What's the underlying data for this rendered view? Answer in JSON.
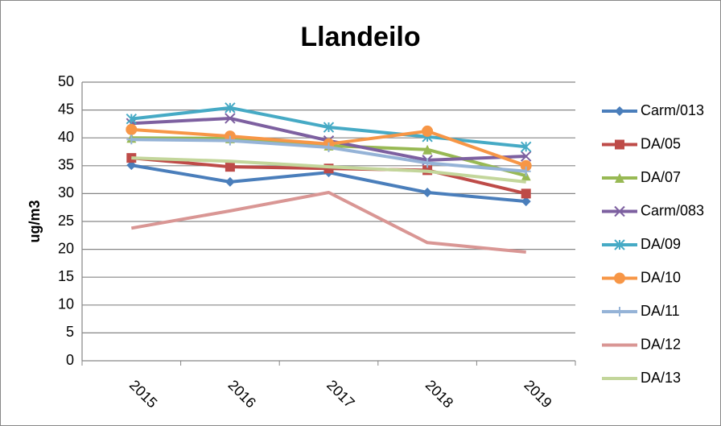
{
  "chart_data": {
    "type": "line",
    "title": "Llandeilo",
    "y_label": "ug/m3",
    "categories": [
      "2015",
      "2016",
      "2017",
      "2018",
      "2019"
    ],
    "ylim": [
      0,
      50
    ],
    "yticks": [
      0,
      5,
      10,
      15,
      20,
      25,
      30,
      35,
      40,
      45,
      50
    ],
    "grid": true,
    "legend": "right",
    "series": [
      {
        "name": "Carm/013",
        "color": "#4a7ebb",
        "marker": "diamond",
        "values": [
          35.1,
          32.1,
          33.8,
          30.2,
          28.6
        ]
      },
      {
        "name": "DA/05",
        "color": "#be4b48",
        "marker": "square",
        "values": [
          36.4,
          34.8,
          34.5,
          34.2,
          30.0
        ]
      },
      {
        "name": "DA/07",
        "color": "#98b954",
        "marker": "triangle",
        "values": [
          40.0,
          39.9,
          38.6,
          37.9,
          33.2
        ]
      },
      {
        "name": "Carm/083",
        "color": "#7d60a0",
        "marker": "x",
        "values": [
          42.6,
          43.5,
          39.5,
          36.0,
          36.7
        ]
      },
      {
        "name": "DA/09",
        "color": "#46aac5",
        "marker": "star",
        "values": [
          43.4,
          45.4,
          41.9,
          40.2,
          38.4
        ]
      },
      {
        "name": "DA/10",
        "color": "#f79646",
        "marker": "circle",
        "values": [
          41.5,
          40.3,
          38.9,
          41.2,
          35.0
        ]
      },
      {
        "name": "DA/11",
        "color": "#95b3d7",
        "marker": "plus",
        "values": [
          39.7,
          39.5,
          38.3,
          35.5,
          34.0
        ]
      },
      {
        "name": "DA/12",
        "color": "#d99694",
        "marker": "none",
        "values": [
          23.8,
          26.9,
          30.2,
          21.2,
          19.5
        ]
      },
      {
        "name": "DA/13",
        "color": "#c3d69b",
        "marker": "none",
        "values": [
          36.4,
          35.8,
          34.8,
          34.0,
          32.1
        ]
      }
    ]
  }
}
